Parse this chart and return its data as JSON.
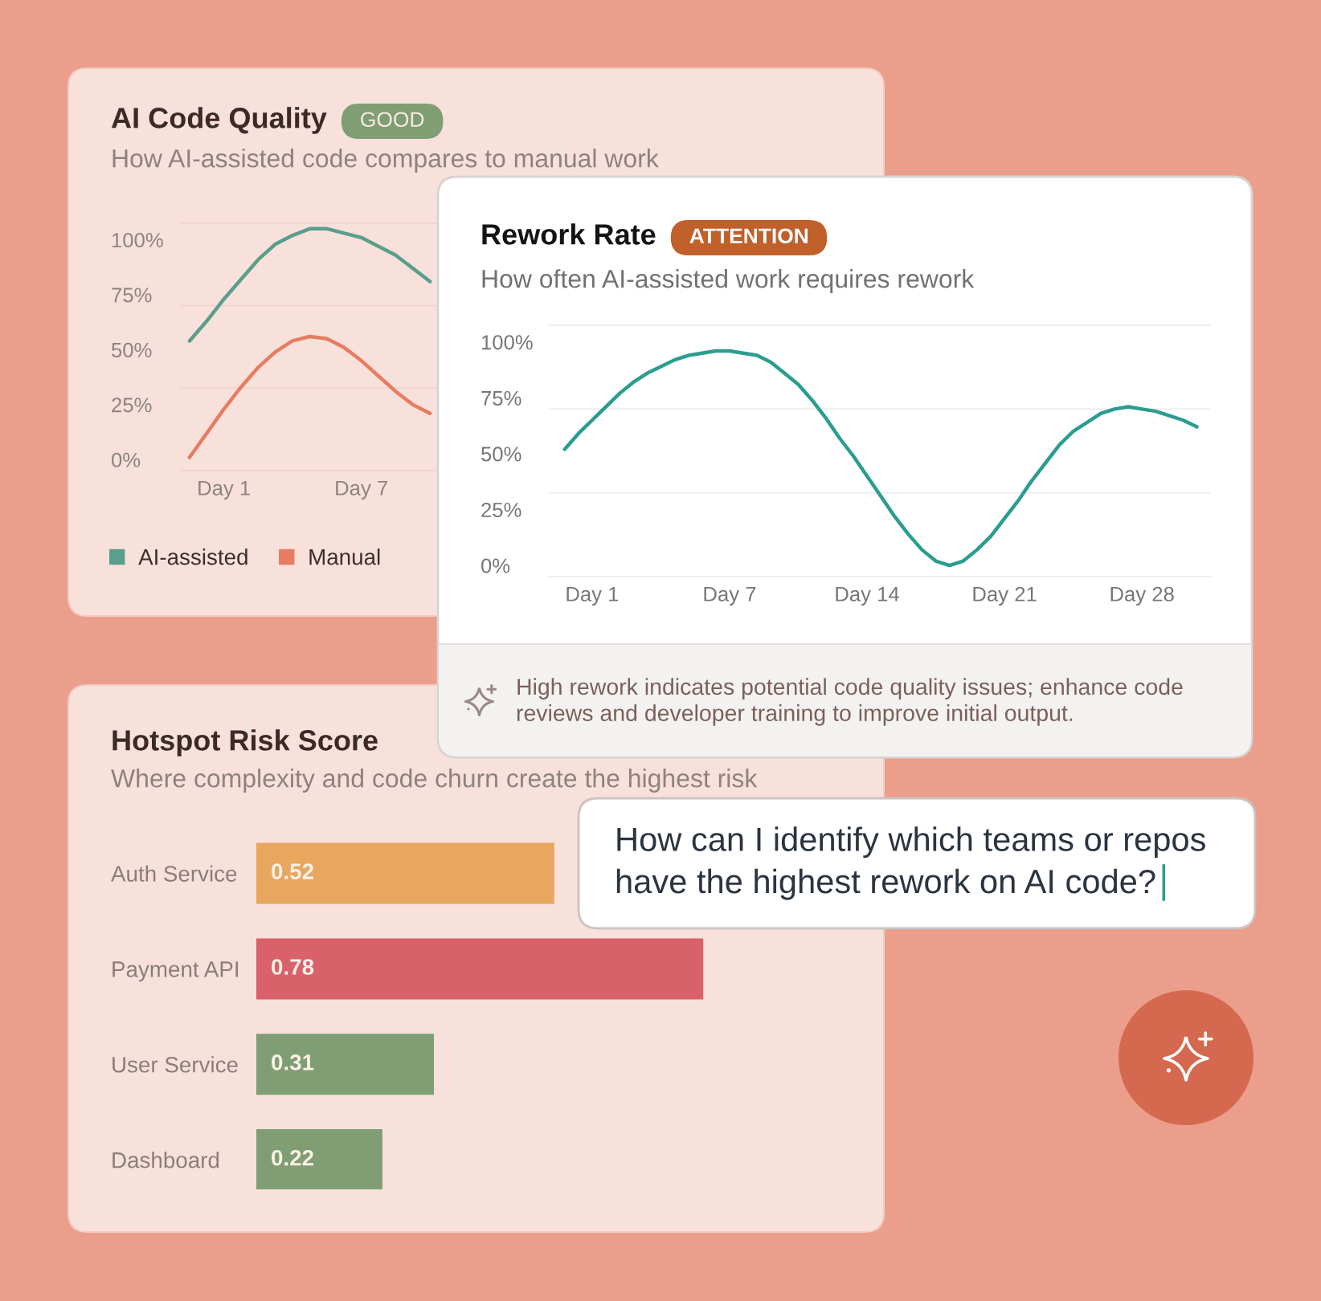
{
  "chart_data": [
    {
      "type": "line",
      "title": "AI Code Quality",
      "subtitle": "How AI-assisted code compares to manual work",
      "annotations": [
        "GOOD"
      ],
      "categories": [
        null,
        null,
        "Day 1",
        null,
        null,
        null,
        null,
        null,
        null,
        null,
        "Day 7",
        null,
        null,
        null,
        null
      ],
      "series": [
        {
          "name": "AI-assisted",
          "color": "#5a9e8c",
          "values": [
            54,
            63,
            73,
            82,
            91,
            98,
            102,
            105,
            105,
            103,
            101,
            97,
            93,
            87,
            81
          ]
        },
        {
          "name": "Manual",
          "color": "#e77c61",
          "values": [
            1,
            12,
            23,
            33,
            42,
            49,
            54,
            56,
            55,
            51,
            45,
            38,
            31,
            25,
            21
          ]
        }
      ],
      "ylim": [
        -5,
        107.5
      ],
      "yticks": [
        {
          "value": 0,
          "label": "0%"
        },
        {
          "value": 25,
          "label": "25%"
        },
        {
          "value": 50,
          "label": "50%"
        },
        {
          "value": 75,
          "label": "75%"
        },
        {
          "value": 100,
          "label": "100%"
        }
      ],
      "ref_lines": [
        {
          "axis": "y",
          "value": 32.5,
          "color": "#f1d6ce"
        },
        {
          "axis": "y",
          "value": 70,
          "color": "#f1d6ce"
        }
      ],
      "legend": "bottom"
    },
    {
      "type": "line",
      "title": "Rework Rate",
      "subtitle": "How often AI-assisted work requires rework",
      "annotations": [
        "ATTENTION",
        "High rework indicates potential code quality issues; enhance code reviews and developer training to improve initial output."
      ],
      "categories": [
        null,
        null,
        "Day 1",
        null,
        null,
        null,
        null,
        null,
        null,
        null,
        null,
        null,
        "Day 7",
        null,
        null,
        null,
        null,
        null,
        null,
        null,
        null,
        null,
        "Day 14",
        null,
        null,
        null,
        null,
        null,
        null,
        null,
        null,
        null,
        "Day 21",
        null,
        null,
        null,
        null,
        null,
        null,
        null,
        null,
        null,
        "Day 28",
        null,
        null,
        null,
        null
      ],
      "series": [
        {
          "color": "#2a9d8f",
          "values": [
            52,
            59,
            65,
            71,
            77,
            82,
            86,
            89,
            92,
            94,
            95,
            96,
            96,
            95,
            94,
            91,
            86,
            81,
            74,
            66,
            57,
            49,
            40,
            31,
            22,
            14,
            7,
            2,
            0,
            2,
            7,
            13,
            21,
            29,
            38,
            46,
            54,
            60,
            64,
            68,
            70,
            71,
            70,
            69,
            67,
            65,
            62
          ]
        }
      ],
      "ylim": [
        -5,
        107.5
      ],
      "yticks": [
        {
          "value": 0,
          "label": "0%"
        },
        {
          "value": 25,
          "label": "25%"
        },
        {
          "value": 50,
          "label": "50%"
        },
        {
          "value": 75,
          "label": "75%"
        },
        {
          "value": 100,
          "label": "100%"
        }
      ],
      "ref_lines": [
        {
          "axis": "y",
          "value": 32.5,
          "color": "#f0eeee"
        },
        {
          "axis": "y",
          "value": 70,
          "color": "#f0eeee"
        }
      ]
    },
    {
      "type": "bar",
      "orientation": "horizontal",
      "title": "Hotspot Risk Score",
      "subtitle": "Where complexity and code churn create the highest risk",
      "categories": [
        "Auth Service",
        "Payment API",
        "User Service",
        "Dashboard"
      ],
      "values": [
        0.52,
        0.78,
        0.31,
        0.22
      ],
      "colors": [
        "#e8a65f",
        "#d9616a",
        "#7f9e74",
        "#7f9e74"
      ],
      "data_labels": true,
      "tick_labels": "y"
    },
    {
      "type": "other",
      "annotations": [
        "How can I identify which teams or repos have the highest rework on AI code?"
      ]
    }
  ]
}
